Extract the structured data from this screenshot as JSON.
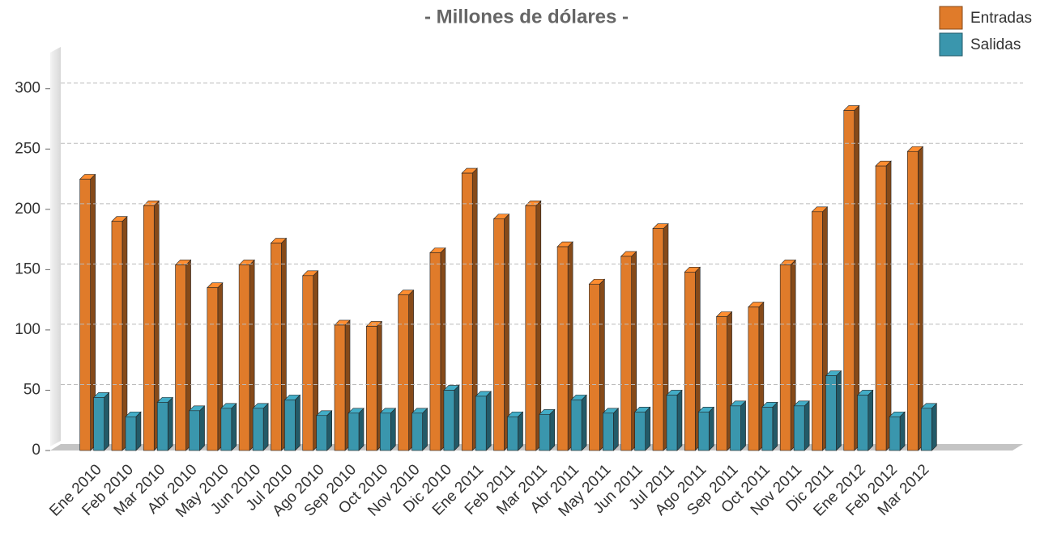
{
  "chart_data": {
    "type": "bar",
    "title": "- Millones de dólares -",
    "categories": [
      "Ene 2010",
      "Feb 2010",
      "Mar 2010",
      "Abr 2010",
      "May 2010",
      "Jun 2010",
      "Jul 2010",
      "Ago 2010",
      "Sep 2010",
      "Oct 2010",
      "Nov 2010",
      "Dic 2010",
      "Ene 2011",
      "Feb 2011",
      "Mar 2011",
      "Abr 2011",
      "May 2011",
      "Jun 2011",
      "Jul 2011",
      "Ago 2011",
      "Sep 2011",
      "Oct 2011",
      "Nov 2011",
      "Dic 2011",
      "Ene 2012",
      "Feb 2012",
      "Mar 2012"
    ],
    "series": [
      {
        "name": "Entradas",
        "color": "#e07b2a",
        "values": [
          225,
          190,
          203,
          154,
          135,
          154,
          172,
          145,
          104,
          103,
          129,
          164,
          230,
          192,
          203,
          169,
          138,
          161,
          184,
          148,
          111,
          119,
          154,
          198,
          282,
          236,
          248
        ]
      },
      {
        "name": "Salidas",
        "color": "#3a96ad",
        "values": [
          44,
          28,
          40,
          33,
          35,
          35,
          42,
          29,
          31,
          31,
          31,
          50,
          45,
          28,
          30,
          42,
          31,
          32,
          46,
          32,
          37,
          36,
          37,
          62,
          46,
          28,
          35
        ]
      }
    ],
    "ylim": [
      0,
      330
    ],
    "yticks": [
      0,
      50,
      100,
      150,
      200,
      250,
      300
    ],
    "grid": true,
    "legend": "top-right"
  }
}
